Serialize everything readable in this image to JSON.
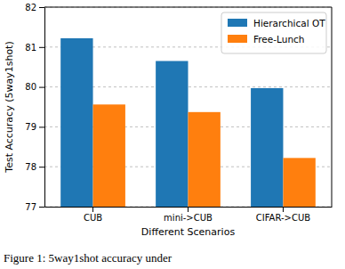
{
  "chart_data": {
    "type": "bar",
    "categories": [
      "CUB",
      "mini->CUB",
      "CIFAR->CUB"
    ],
    "series": [
      {
        "name": "Hierarchical OT",
        "color": "#1f77b4",
        "values": [
          81.22,
          80.65,
          79.97
        ]
      },
      {
        "name": "Free-Lunch",
        "color": "#ff7f0e",
        "values": [
          79.56,
          79.37,
          78.22
        ]
      }
    ],
    "x_label": "Different Scenarios",
    "y_label": "Test Accuracy (5way1shot)",
    "annotations": [
      "Figure 1: 5way1shot accuracy under"
    ],
    "ylim": [
      77,
      82
    ],
    "yticks": [
      77,
      78,
      79,
      80,
      81,
      82
    ],
    "grid": true,
    "legend": "upper right"
  }
}
